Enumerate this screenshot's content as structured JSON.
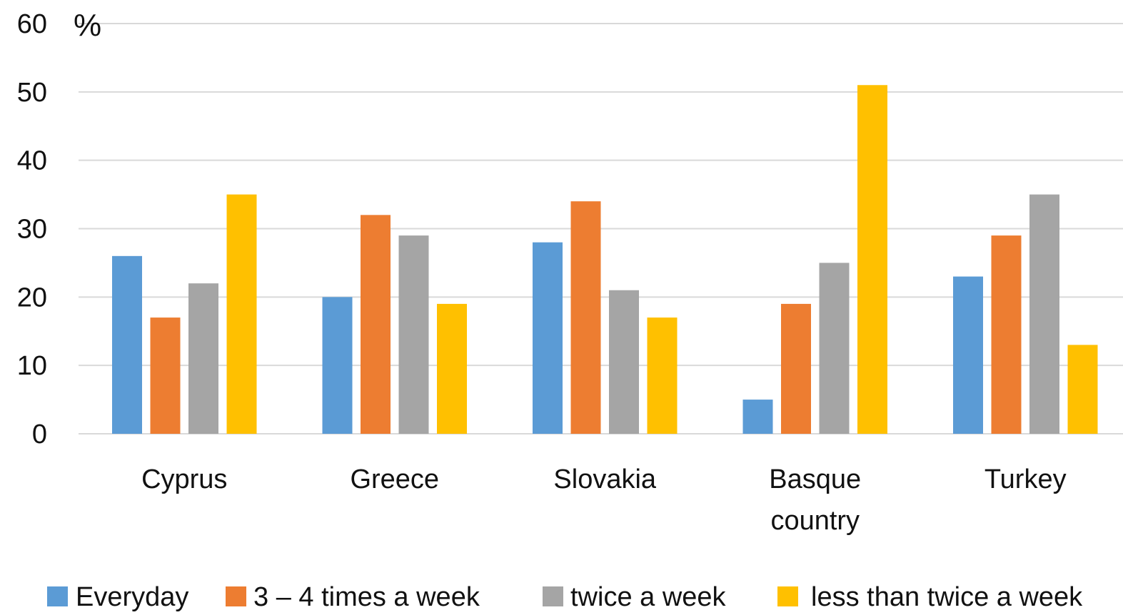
{
  "chart_data": {
    "type": "bar",
    "categories": [
      [
        "Cyprus"
      ],
      [
        "Greece"
      ],
      [
        "Slovakia"
      ],
      [
        "Basque",
        "country"
      ],
      [
        "Turkey"
      ]
    ],
    "series": [
      {
        "name": "Everyday",
        "color": "#5b9bd5",
        "values": [
          26,
          20,
          28,
          5,
          23
        ]
      },
      {
        "name": "3 – 4 times a week",
        "color": "#ed7d31",
        "values": [
          17,
          32,
          34,
          19,
          29
        ]
      },
      {
        "name": "twice a week",
        "color": "#a5a5a5",
        "values": [
          22,
          29,
          21,
          25,
          35
        ]
      },
      {
        "name": "less than twice a week",
        "color": "#ffc000",
        "values": [
          35,
          19,
          17,
          51,
          13
        ]
      }
    ],
    "ylabel": "%",
    "ylim": [
      0,
      60
    ],
    "yticks": [
      0,
      10,
      20,
      30,
      40,
      50,
      60
    ],
    "grid": true,
    "legend_position": "bottom"
  }
}
